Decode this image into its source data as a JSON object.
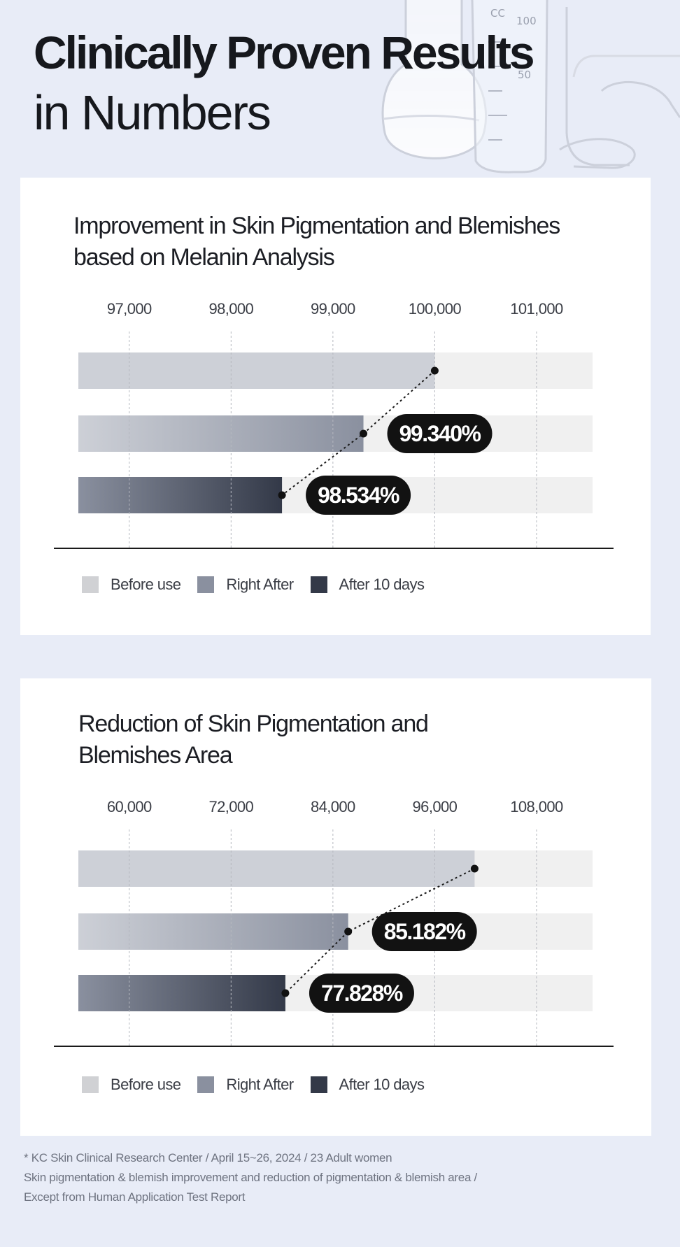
{
  "hero": {
    "title_line1": "Clinically Proven Results",
    "title_line2": "in Numbers",
    "beaker_marks": [
      "CC",
      "100",
      "50"
    ]
  },
  "colors": {
    "background": "#e8ecf7",
    "before": "#cdd0d7",
    "right_after": "#8a909f",
    "after_10": "#333948",
    "track": "#f0f0f0",
    "badge": "#121212"
  },
  "legend": [
    "Before use",
    "Right After",
    "After 10 days"
  ],
  "chart_data": [
    {
      "type": "bar",
      "title_lines": [
        "Improvement in Skin Pigmentation and Blemishes",
        "based on Melanin Analysis"
      ],
      "xlabel": "",
      "ylabel": "",
      "ticks": [
        "97,000",
        "98,000",
        "99,000",
        "100,000",
        "101,000"
      ],
      "tick_values": [
        97000,
        98000,
        99000,
        100000,
        101000
      ],
      "xlim": [
        96500,
        101550
      ],
      "grid": true,
      "series": [
        {
          "name": "Before use",
          "value": 100000,
          "label": ""
        },
        {
          "name": "Right After",
          "value": 99300,
          "label": "99.340%"
        },
        {
          "name": "After 10 days",
          "value": 98500,
          "label": "98.534%"
        }
      ]
    },
    {
      "type": "bar",
      "title_lines": [
        "Reduction of Skin Pigmentation and",
        "Blemishes Area"
      ],
      "xlabel": "",
      "ylabel": "",
      "ticks": [
        "60,000",
        "72,000",
        "84,000",
        "96,000",
        "108,000"
      ],
      "tick_values": [
        60000,
        72000,
        84000,
        96000,
        108000
      ],
      "xlim": [
        54000,
        114600
      ],
      "grid": true,
      "series": [
        {
          "name": "Before use",
          "value": 100700,
          "label": ""
        },
        {
          "name": "Right After",
          "value": 85800,
          "label": "85.182%"
        },
        {
          "name": "After 10 days",
          "value": 78400,
          "label": "77.828%"
        }
      ]
    }
  ],
  "footnote": [
    "* KC Skin Clinical Research Center / April 15~26, 2024 / 23 Adult women",
    "Skin pigmentation & blemish improvement and reduction of pigmentation & blemish area /",
    "Except from Human Application Test Report"
  ]
}
